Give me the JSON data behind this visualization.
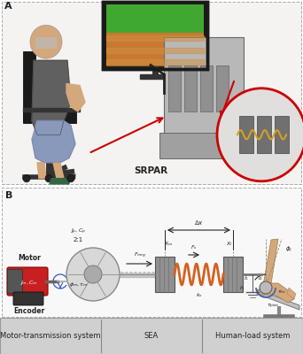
{
  "panel_A_label": "A",
  "panel_B_label": "B",
  "srpar_label": "SRPAR",
  "sea_label": "SEA",
  "bottom_labels": [
    "Motor-transmission system",
    "SEA",
    "Human-load system"
  ],
  "motor_label": "Motor",
  "encoder_label": "Encoder",
  "bg_color": "#f0eeec",
  "panel_border_color": "#aaaaaa",
  "bottom_bar_color": "#d0d0d0",
  "motor_red": "#c82020",
  "spring_color": "#d46020",
  "block_color": "#909090",
  "arrow_red": "#cc0000",
  "text_color": "#222222",
  "label_fontsize": 6.5,
  "small_fontsize": 5.0,
  "panel_label_fontsize": 8,
  "skin_color": "#d4a87a",
  "gray_dark": "#444444",
  "gray_med": "#888888",
  "gray_light": "#cccccc",
  "white": "#ffffff",
  "monitor_orange": "#d08030",
  "monitor_green": "#40a030"
}
